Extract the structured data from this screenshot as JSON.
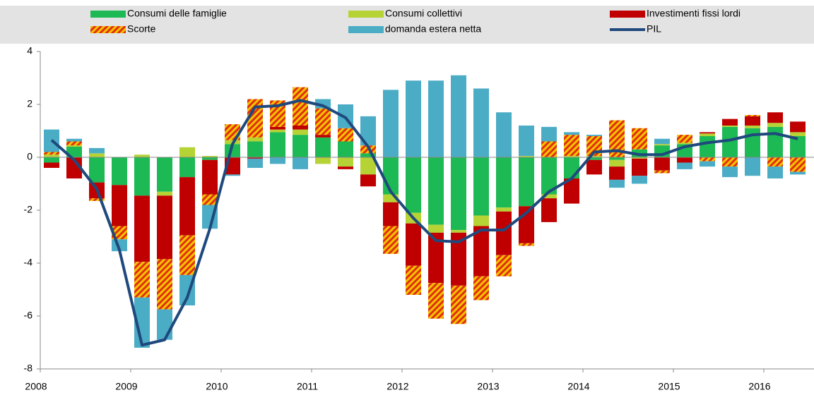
{
  "chart_data": {
    "type": "bar",
    "stacked": true,
    "categories": [
      "2008",
      null,
      null,
      null,
      "2009",
      null,
      null,
      null,
      "2010",
      null,
      null,
      null,
      "2011",
      null,
      null,
      null,
      "2012",
      null,
      null,
      null,
      "2013",
      null,
      null,
      null,
      "2014",
      null,
      null,
      null,
      "2015",
      null,
      null,
      null,
      "2016",
      null
    ],
    "series": [
      {
        "name": "Consumi delle famiglie",
        "color": "#1db954",
        "values": [
          -0.2,
          0.4,
          -0.95,
          -1.05,
          -1.45,
          -1.3,
          -0.75,
          -0.1,
          0.5,
          0.6,
          0.95,
          0.85,
          0.75,
          0.6,
          0.15,
          -1.4,
          -2.1,
          -2.55,
          -2.75,
          -2.2,
          -1.9,
          -1.85,
          -1.4,
          -0.8,
          -0.1,
          -0.1,
          0.3,
          0.45,
          0.5,
          0.8,
          1.15,
          1.1,
          1.15,
          0.8
        ]
      },
      {
        "name": "Consumi collettivi",
        "color": "#b5d334",
        "values": [
          0.1,
          0.05,
          0.15,
          0,
          0.1,
          -0.15,
          0.38,
          0.05,
          0.15,
          0.15,
          0.1,
          0.2,
          -0.25,
          -0.35,
          -0.65,
          -0.3,
          -0.4,
          -0.3,
          -0.1,
          -0.4,
          -0.15,
          0.05,
          -0.15,
          0.05,
          0.05,
          -0.25,
          -0.05,
          0.05,
          0.05,
          0.1,
          0.05,
          0.1,
          0.15,
          0.15
        ]
      },
      {
        "name": "Investimenti fissi lordi",
        "color": "#c00000",
        "values": [
          -0.2,
          -0.8,
          -0.6,
          -1.55,
          -2.5,
          -2.4,
          -2.2,
          -1.3,
          -0.65,
          -0.05,
          0.1,
          0.15,
          0.1,
          -0.1,
          -0.45,
          -0.9,
          -1.6,
          -1.9,
          -2.0,
          -1.9,
          -1.65,
          -1.4,
          -0.9,
          -0.95,
          -0.55,
          -0.5,
          -0.65,
          -0.5,
          -0.2,
          0.05,
          0.25,
          0.35,
          0.4,
          0.4
        ]
      },
      {
        "name": "Scorte",
        "color": "#f5c400",
        "pattern": "hatch",
        "hatch_color": "#e03010",
        "values": [
          0.1,
          0.15,
          -0.1,
          -0.5,
          -1.35,
          -1.9,
          -1.5,
          -0.4,
          0.6,
          1.45,
          1.0,
          1.45,
          1.0,
          0.5,
          0.3,
          -1.05,
          -1.1,
          -1.35,
          -1.45,
          -0.9,
          -0.8,
          -0.1,
          0.6,
          0.8,
          0.75,
          1.4,
          0.8,
          -0.1,
          0.3,
          -0.15,
          -0.35,
          0.05,
          -0.35,
          -0.55
        ]
      },
      {
        "name": "domanda estera netta",
        "color": "#4bacc6",
        "values": [
          0.85,
          0.1,
          0.2,
          -0.45,
          -1.9,
          -1.15,
          -1.15,
          -0.9,
          -0.05,
          -0.35,
          -0.25,
          -0.45,
          0.35,
          0.9,
          1.1,
          2.55,
          2.9,
          2.9,
          3.1,
          2.6,
          1.7,
          1.15,
          0.55,
          0.1,
          0.05,
          -0.3,
          -0.3,
          0.2,
          -0.25,
          -0.2,
          -0.4,
          -0.7,
          -0.45,
          -0.1
        ]
      },
      {
        "name": "PIL",
        "type": "line",
        "color": "#1f497d",
        "values": [
          0.65,
          -0.1,
          -1.2,
          -3.5,
          -7.1,
          -6.9,
          -5.3,
          -2.7,
          0.5,
          1.9,
          1.95,
          2.15,
          1.95,
          1.5,
          0.4,
          -1.3,
          -2.3,
          -3.15,
          -3.2,
          -2.75,
          -2.75,
          -2.1,
          -1.3,
          -0.8,
          0.2,
          0.25,
          0.1,
          0.1,
          0.4,
          0.55,
          0.65,
          0.85,
          0.9,
          0.7
        ]
      }
    ],
    "ylim": [
      -8,
      4
    ],
    "yticks": [
      -8,
      -6,
      -4,
      -2,
      0,
      2,
      4
    ],
    "legend": "top"
  }
}
